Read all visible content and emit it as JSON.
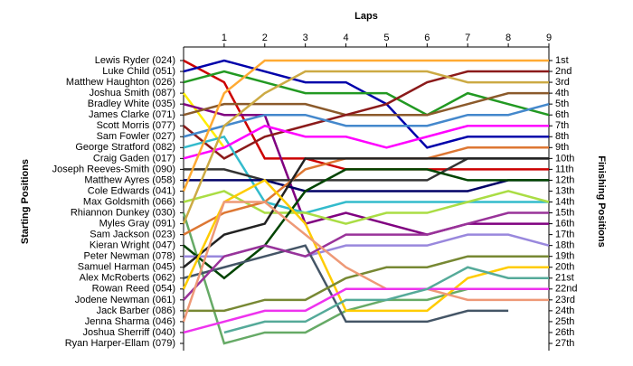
{
  "chart_data": {
    "type": "bump",
    "title": "Laps",
    "y_label": "Starting Positions",
    "y2_label": "Finishing Positions",
    "xlim": [
      0,
      9
    ],
    "xticks": [
      1,
      2,
      3,
      4,
      5,
      6,
      7,
      8,
      9
    ],
    "ylim": [
      1,
      27
    ],
    "y2ticks": [
      {
        "value": 1,
        "label": "1st"
      },
      {
        "value": 2,
        "label": "2nd"
      },
      {
        "value": 3,
        "label": "3rd"
      },
      {
        "value": 4,
        "label": "4th"
      },
      {
        "value": 5,
        "label": "5th"
      },
      {
        "value": 6,
        "label": "6th"
      },
      {
        "value": 7,
        "label": "7th"
      },
      {
        "value": 8,
        "label": "8th"
      },
      {
        "value": 9,
        "label": "9th"
      },
      {
        "value": 10,
        "label": "10th"
      },
      {
        "value": 11,
        "label": "11th"
      },
      {
        "value": 12,
        "label": "12th"
      },
      {
        "value": 13,
        "label": "13th"
      },
      {
        "value": 14,
        "label": "14th"
      },
      {
        "value": 15,
        "label": "15th"
      },
      {
        "value": 16,
        "label": "16th"
      },
      {
        "value": 17,
        "label": "17th"
      },
      {
        "value": 18,
        "label": "18th"
      },
      {
        "value": 19,
        "label": "19th"
      },
      {
        "value": 20,
        "label": "20th"
      },
      {
        "value": 21,
        "label": "21st"
      },
      {
        "value": 22,
        "label": "22nd"
      },
      {
        "value": 23,
        "label": "23rd"
      },
      {
        "value": 24,
        "label": "24th"
      },
      {
        "value": 25,
        "label": "25th"
      },
      {
        "value": 26,
        "label": "26th"
      },
      {
        "value": 27,
        "label": "27th"
      }
    ],
    "series": [
      {
        "name": "Lewis Ryder (024)",
        "color": "#cc0000",
        "values": [
          1,
          3,
          10,
          10,
          11,
          11,
          11,
          11,
          11,
          11
        ]
      },
      {
        "name": "Luke Child (051)",
        "color": "#0000aa",
        "values": [
          2,
          1,
          2,
          3,
          3,
          5,
          9,
          8,
          8,
          8
        ]
      },
      {
        "name": "Matthew Haughton (026)",
        "color": "#229922",
        "values": [
          3,
          2,
          3,
          4,
          4,
          4,
          6,
          4,
          5,
          6
        ]
      },
      {
        "name": "Joshua Smith (087)",
        "color": "#ffee00",
        "values": [
          4,
          9,
          null,
          null,
          null,
          null,
          null,
          null,
          null,
          null
        ]
      },
      {
        "name": "Bradley White (035)",
        "color": "#800080",
        "values": [
          5,
          6,
          6,
          16,
          15,
          16,
          17,
          16,
          16,
          16
        ]
      },
      {
        "name": "James Clarke (071)",
        "color": "#8b5a2b",
        "values": [
          6,
          5,
          5,
          5,
          6,
          6,
          6,
          5,
          4,
          4
        ]
      },
      {
        "name": "Scott Morris (077)",
        "color": "#8b1a1a",
        "values": [
          7,
          10,
          8,
          7,
          6,
          5,
          3,
          2,
          2,
          2
        ]
      },
      {
        "name": "Sam Fowler (027)",
        "color": "#4488cc",
        "values": [
          8,
          7,
          6,
          6,
          7,
          7,
          7,
          6,
          6,
          5
        ]
      },
      {
        "name": "George Stratford (082)",
        "color": "#33bbcc",
        "values": [
          9,
          8,
          14,
          15,
          14,
          14,
          14,
          14,
          14,
          14
        ]
      },
      {
        "name": "Craig Gaden (017)",
        "color": "#ff00ff",
        "values": [
          10,
          9,
          7,
          8,
          8,
          9,
          8,
          7,
          7,
          7
        ]
      },
      {
        "name": "Joseph Reeves-Smith (090)",
        "color": "#333333",
        "values": [
          11,
          11,
          12,
          12,
          12,
          12,
          12,
          10,
          10,
          10
        ]
      },
      {
        "name": "Matthew Ayres (058)",
        "color": "#000066",
        "values": [
          12,
          12,
          12,
          13,
          13,
          13,
          13,
          13,
          12,
          12
        ]
      },
      {
        "name": "Cole Edwards (041)",
        "color": "#ffaa33",
        "values": [
          13,
          4,
          1,
          1,
          1,
          1,
          1,
          1,
          1,
          1
        ]
      },
      {
        "name": "Max Goldsmith (066)",
        "color": "#aadd44",
        "values": [
          14,
          13,
          15,
          15,
          16,
          15,
          15,
          14,
          13,
          14
        ]
      },
      {
        "name": "Rhiannon Dunkey (030)",
        "color": "#66aa66",
        "values": [
          15,
          27,
          26,
          26,
          24,
          23,
          23,
          22,
          22,
          22
        ]
      },
      {
        "name": "Myles Gray (091)",
        "color": "#ccaa44",
        "values": [
          16,
          7,
          4,
          2,
          2,
          2,
          2,
          3,
          3,
          3
        ]
      },
      {
        "name": "Sam Jackson (023)",
        "color": "#dd7733",
        "values": [
          17,
          15,
          14,
          11,
          10,
          10,
          10,
          9,
          9,
          9
        ]
      },
      {
        "name": "Kieran Wright (047)",
        "color": "#004400",
        "values": [
          18,
          21,
          18,
          13,
          11,
          11,
          11,
          12,
          12,
          12
        ]
      },
      {
        "name": "Peter Newman (078)",
        "color": "#9988dd",
        "values": [
          19,
          19,
          18,
          19,
          18,
          18,
          18,
          17,
          17,
          18
        ]
      },
      {
        "name": "Samuel Harman (045)",
        "color": "#222222",
        "values": [
          20,
          17,
          16,
          10,
          10,
          10,
          10,
          10,
          10,
          10
        ]
      },
      {
        "name": "Alex McRoberts (062)",
        "color": "#445566",
        "values": [
          21,
          20,
          19,
          18,
          25,
          25,
          25,
          24,
          24,
          null
        ]
      },
      {
        "name": "Rowan Reed (054)",
        "color": "#ffcc00",
        "values": [
          22,
          14,
          12,
          16,
          24,
          24,
          24,
          21,
          20,
          20
        ]
      },
      {
        "name": "Jodene Newman (061)",
        "color": "#993399",
        "values": [
          23,
          19,
          18,
          19,
          17,
          17,
          17,
          16,
          15,
          15
        ]
      },
      {
        "name": "Jack Barber (086)",
        "color": "#778833",
        "values": [
          24,
          24,
          23,
          23,
          21,
          20,
          20,
          19,
          19,
          19
        ]
      },
      {
        "name": "Jenna Sharma (046)",
        "color": "#ee9977",
        "values": [
          25,
          14,
          14,
          17,
          20,
          22,
          22,
          23,
          23,
          23
        ]
      },
      {
        "name": "Joshua Sherriff (040)",
        "color": "#ee33ee",
        "values": [
          26,
          25,
          24,
          24,
          22,
          22,
          22,
          22,
          22,
          22
        ]
      },
      {
        "name": "Ryan Harper-Ellam (079)",
        "color": "#55aa99",
        "values": [
          null,
          26,
          25,
          25,
          23,
          23,
          22,
          20,
          21,
          21
        ]
      }
    ]
  }
}
